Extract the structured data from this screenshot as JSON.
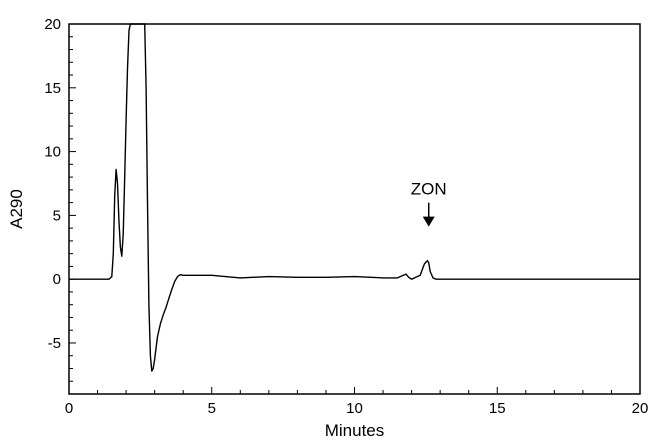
{
  "chart_data": {
    "type": "line",
    "xlabel": "Minutes",
    "ylabel": "A290",
    "xlim": [
      0,
      20
    ],
    "ylim": [
      -9,
      20
    ],
    "xticks": [
      0,
      5,
      10,
      15,
      20
    ],
    "yticks": [
      -5,
      0,
      5,
      10,
      15,
      20
    ],
    "grid": false,
    "series": [
      {
        "x": [
          0,
          0.5,
          1.0,
          1.4,
          1.5,
          1.55,
          1.6,
          1.65,
          1.7,
          1.75,
          1.8,
          1.85,
          1.9,
          1.95,
          2.0,
          2.05,
          2.1,
          2.15,
          2.2,
          2.25,
          2.3,
          2.6,
          2.65,
          2.7,
          2.75,
          2.8,
          2.85,
          2.9,
          2.95,
          3.0,
          3.1,
          3.2,
          3.3,
          3.4,
          3.5,
          3.6,
          3.7,
          3.8,
          3.9,
          4.0,
          4.5,
          5.0,
          6.0,
          7.0,
          8.0,
          9.0,
          10.0,
          11.0,
          11.5,
          11.8,
          11.9,
          12.0,
          12.1,
          12.3,
          12.45,
          12.55,
          12.6,
          12.65,
          12.75,
          12.85,
          13.0,
          14.0,
          15.0,
          16.0,
          17.0,
          18.0,
          19.0,
          20.0
        ],
        "y": [
          0,
          0,
          0,
          0,
          0.2,
          2.0,
          6.5,
          8.6,
          7.5,
          4.5,
          2.5,
          1.8,
          3.5,
          8.0,
          12.5,
          16.5,
          19.5,
          20.5,
          20.5,
          20.5,
          20.5,
          20.5,
          20.5,
          15.0,
          6.0,
          -2.0,
          -6.0,
          -7.2,
          -7.0,
          -6.3,
          -4.5,
          -3.5,
          -2.8,
          -2.2,
          -1.5,
          -0.8,
          -0.2,
          0.2,
          0.35,
          0.3,
          0.3,
          0.3,
          0.1,
          0.2,
          0.15,
          0.15,
          0.2,
          0.1,
          0.1,
          0.4,
          0.15,
          0.0,
          0.1,
          0.3,
          1.2,
          1.45,
          1.3,
          0.6,
          0.1,
          0.0,
          0.0,
          0.0,
          0.0,
          0.0,
          0.0,
          0.0,
          0.0,
          0.0
        ]
      }
    ],
    "annotations": [
      {
        "text": "ZON",
        "x": 12.6,
        "y": 1.45,
        "arrow": "down"
      }
    ]
  }
}
